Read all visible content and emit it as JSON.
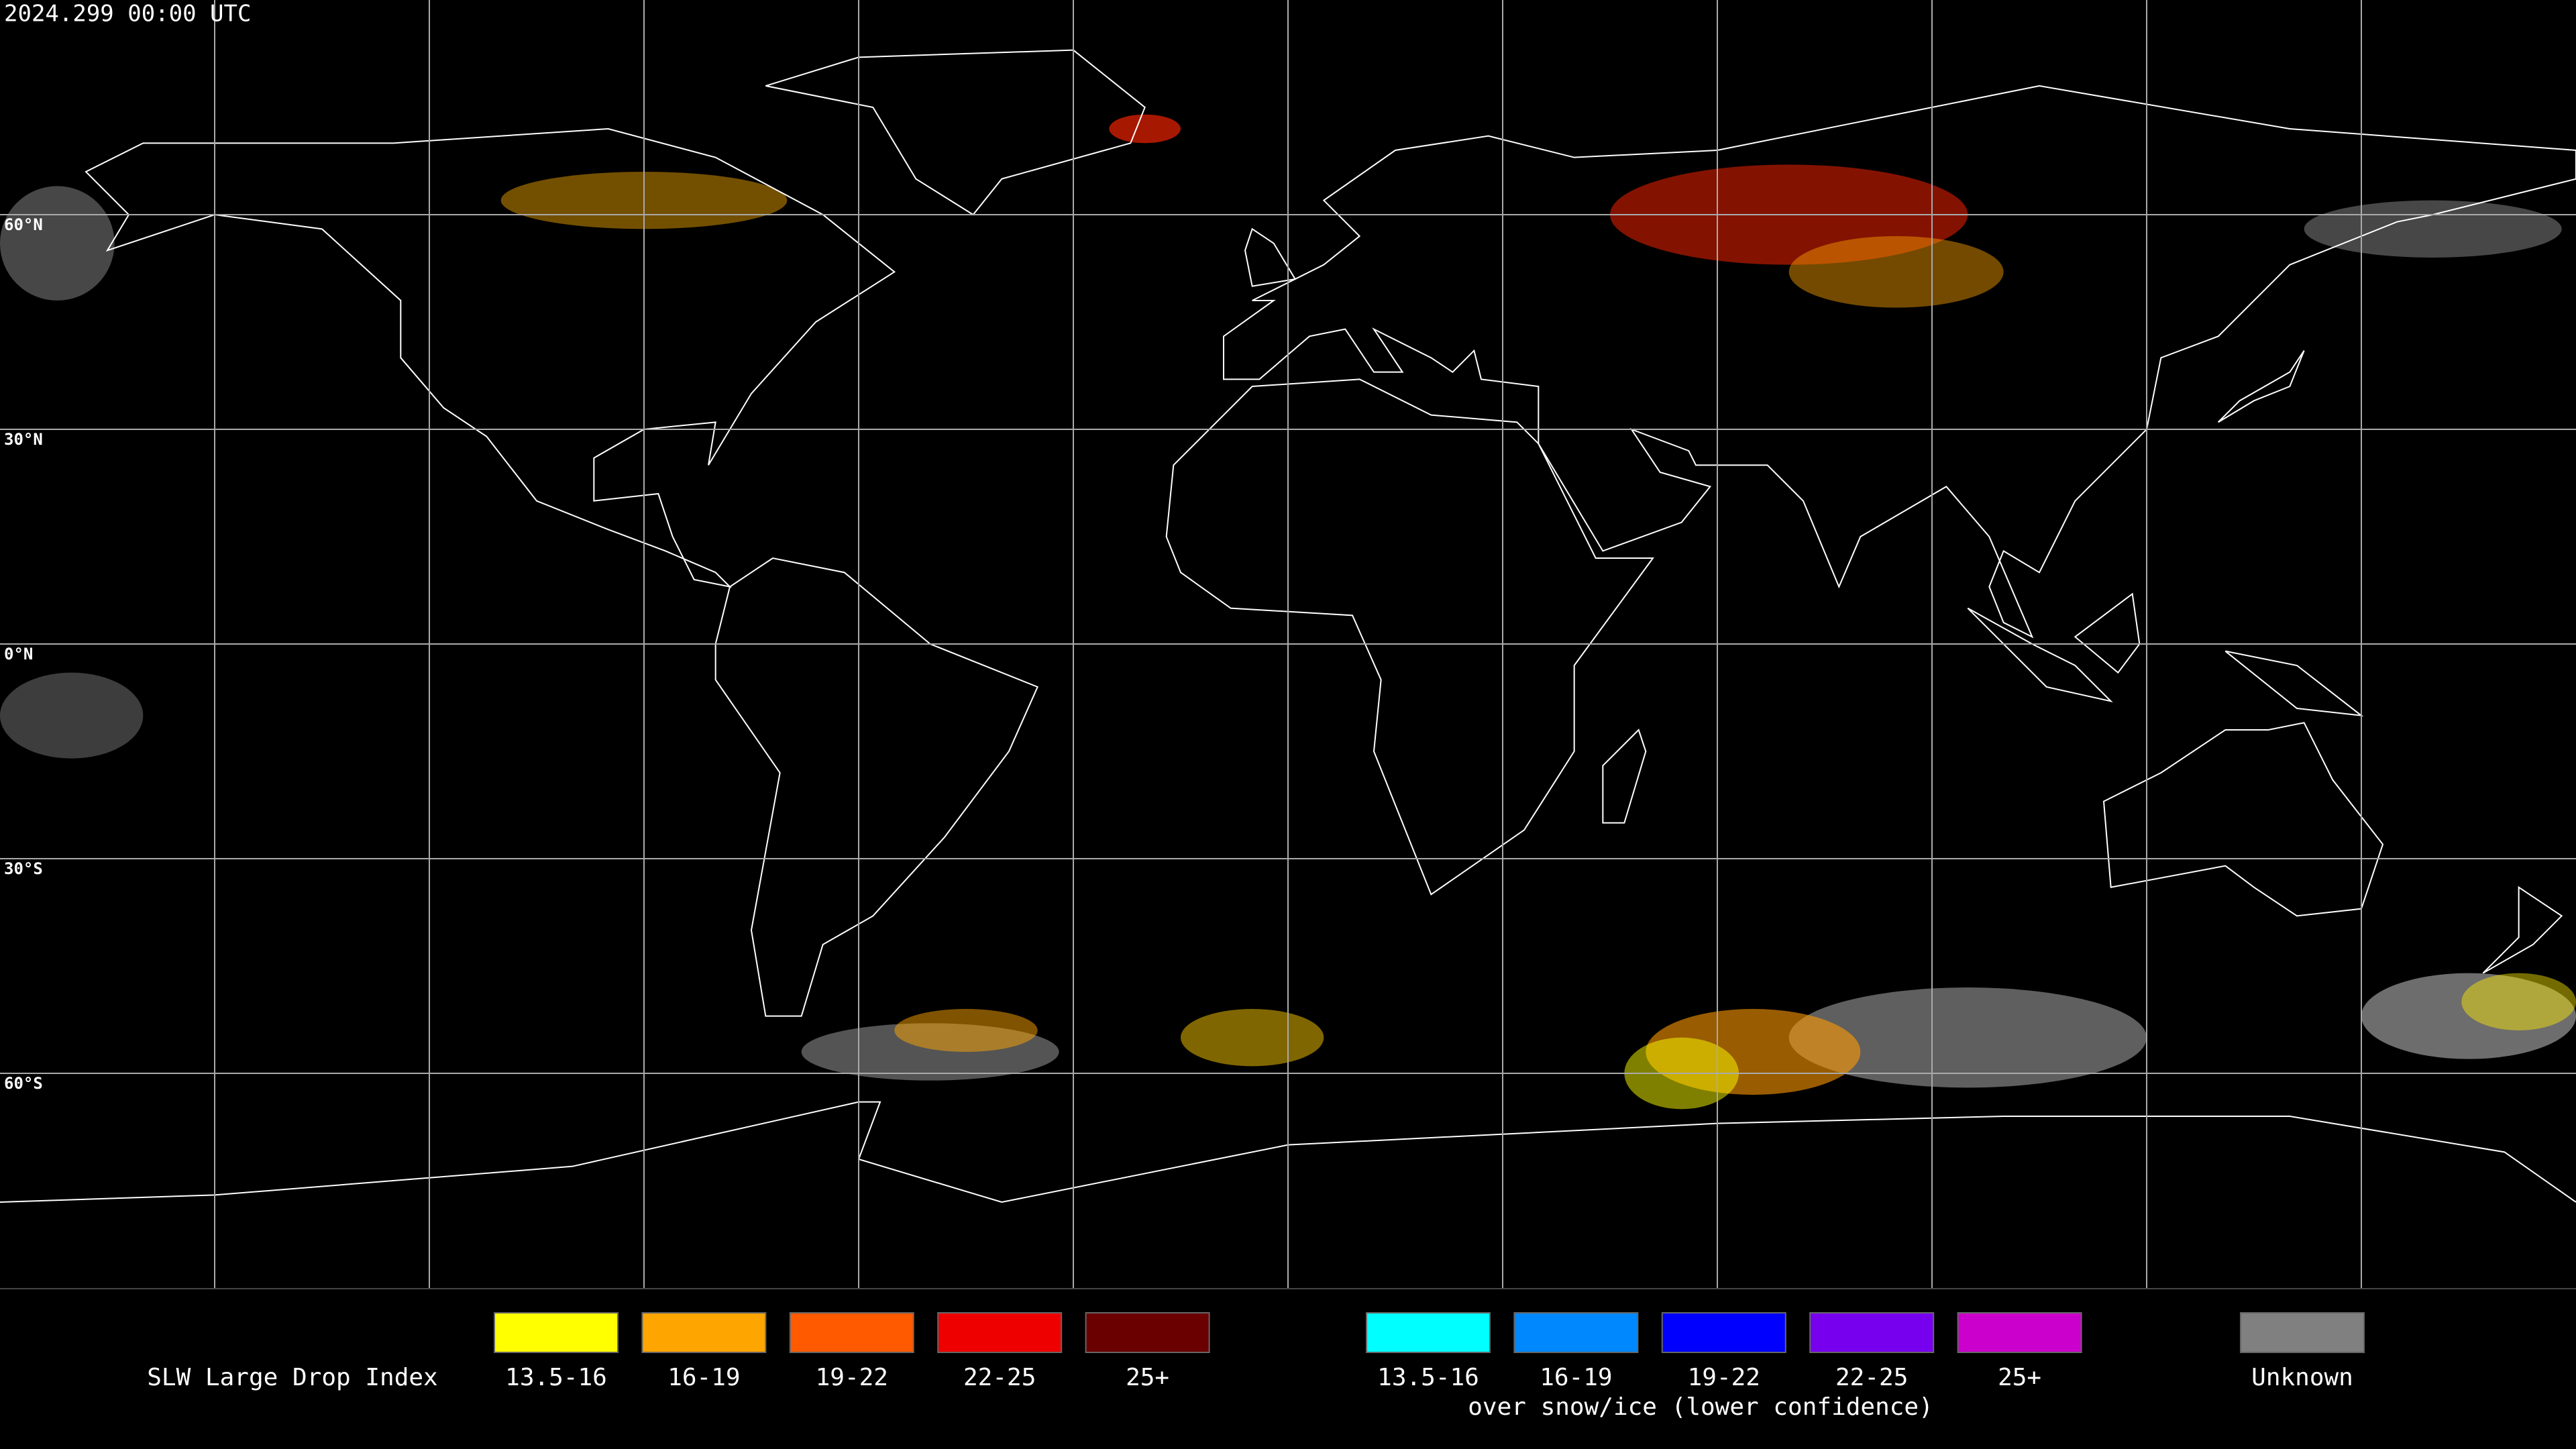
{
  "header": {
    "timestamp": "2024.299 00:00 UTC"
  },
  "map": {
    "latitude_labels": [
      "60°N",
      "30°N",
      "0°N",
      "30°S",
      "60°S"
    ]
  },
  "legend": {
    "title": "SLW Large Drop Index",
    "classes": [
      {
        "label": "13.5-16",
        "color": "#ffff00"
      },
      {
        "label": "16-19",
        "color": "#ffa500"
      },
      {
        "label": "19-22",
        "color": "#ff5a00"
      },
      {
        "label": "22-25",
        "color": "#ee0000"
      },
      {
        "label": "25+",
        "color": "#6b0000"
      }
    ],
    "snow_ice_classes": [
      {
        "label": "13.5-16",
        "color": "#00ffff"
      },
      {
        "label": "16-19",
        "color": "#0088ff"
      },
      {
        "label": "19-22",
        "color": "#0000ff"
      },
      {
        "label": "22-25",
        "color": "#7700ee"
      },
      {
        "label": "25+",
        "color": "#cc00cc"
      }
    ],
    "snow_ice_note": "over snow/ice (lower confidence)",
    "unknown": {
      "label": "Unknown",
      "color": "#808080"
    }
  }
}
